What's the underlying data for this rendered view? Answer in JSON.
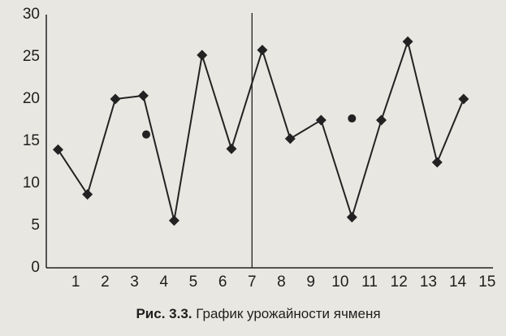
{
  "chart_data": {
    "type": "line",
    "caption_label": "Рис. 3.3.",
    "caption_text": "График урожайности ячменя",
    "x": [
      0.4,
      1.4,
      2.35,
      3.3,
      4.35,
      5.3,
      6.3,
      7.35,
      8.3,
      9.35,
      10.4,
      11.4,
      12.3,
      13.3,
      14.2
    ],
    "series": [
      {
        "color": "#222222",
        "marker": "diamond",
        "line": true,
        "values": [
          14.0,
          8.7,
          20.0,
          20.4,
          5.6,
          25.2,
          14.1,
          25.8,
          15.3,
          17.5,
          6.0,
          17.5,
          26.8,
          12.5,
          20.0
        ]
      }
    ],
    "points": {
      "color": "#222222",
      "marker": "circle",
      "x": [
        3.4,
        10.4
      ],
      "values": [
        15.8,
        17.7
      ]
    },
    "vline": 7,
    "xlim": [
      0,
      15.2
    ],
    "ylim": [
      0,
      30
    ],
    "xticks": [
      1,
      2,
      3,
      4,
      5,
      6,
      7,
      8,
      9,
      10,
      11,
      12,
      13,
      14,
      15
    ],
    "yticks": [
      0,
      5,
      10,
      15,
      20,
      25,
      30
    ],
    "grid": false
  }
}
